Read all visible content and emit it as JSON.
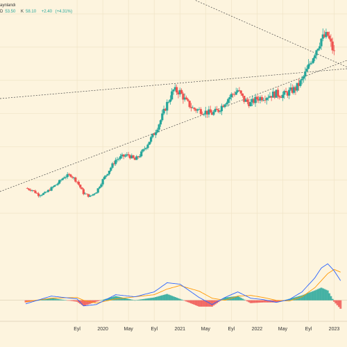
{
  "chart_data": [
    {
      "type": "candlestick",
      "title": "",
      "header": {
        "source_fragment": "aynlandı",
        "low_label": "D",
        "low_value": "53.50",
        "close_label": "K",
        "close_value": "58.10",
        "change": "+2.40",
        "change_pct": "(+4.31%)"
      },
      "x_tick_labels": [
        "Eyl",
        "2020",
        "May",
        "Eyl",
        "2021",
        "May",
        "Eyl",
        "2022",
        "May",
        "Eyl",
        "2023"
      ],
      "x_tick_months": [
        8,
        12,
        16,
        20,
        24,
        28,
        32,
        36,
        40,
        44,
        48
      ],
      "candles_approx_close": [
        [
          0,
          17.5
        ],
        [
          1,
          17.0
        ],
        [
          2,
          15.5
        ],
        [
          3,
          16.0
        ],
        [
          4,
          17.5
        ],
        [
          5,
          19.0
        ],
        [
          6,
          21.0
        ],
        [
          7,
          21.5
        ],
        [
          8,
          19.5
        ],
        [
          9,
          16.0
        ],
        [
          10,
          15.0
        ],
        [
          11,
          16.5
        ],
        [
          12,
          20.0
        ],
        [
          13,
          23.0
        ],
        [
          14,
          26.0
        ],
        [
          15,
          27.0
        ],
        [
          16,
          27.5
        ],
        [
          17,
          26.0
        ],
        [
          18,
          28.0
        ],
        [
          19,
          31.0
        ],
        [
          20,
          34.0
        ],
        [
          21,
          38.0
        ],
        [
          22,
          43.0
        ],
        [
          23,
          47.0
        ],
        [
          24,
          46.5
        ],
        [
          25,
          43.5
        ],
        [
          26,
          41.5
        ],
        [
          27,
          41.0
        ],
        [
          28,
          40.5
        ],
        [
          29,
          40.0
        ],
        [
          30,
          41.0
        ],
        [
          31,
          43.5
        ],
        [
          32,
          45.5
        ],
        [
          33,
          47.0
        ],
        [
          34,
          44.0
        ],
        [
          35,
          43.0
        ],
        [
          36,
          44.5
        ],
        [
          37,
          45.0
        ],
        [
          38,
          45.5
        ],
        [
          39,
          46.0
        ],
        [
          40,
          45.5
        ],
        [
          41,
          46.5
        ],
        [
          42,
          47.5
        ],
        [
          43,
          50.0
        ],
        [
          44,
          54.0
        ],
        [
          45,
          58.5
        ],
        [
          46,
          62.5
        ],
        [
          47,
          63.5
        ],
        [
          48,
          58.1
        ]
      ],
      "trendlines": [
        {
          "style": "dotted",
          "from": [
            -4,
            16.5
          ],
          "to": [
            50,
            56.0
          ]
        },
        {
          "style": "dotted",
          "from": [
            -4,
            44.5
          ],
          "to": [
            50,
            53.5
          ]
        },
        {
          "style": "dotted",
          "from": [
            -4,
            100.0
          ],
          "to": [
            50,
            54.0
          ]
        }
      ],
      "y_range": [
        0,
        70
      ],
      "x_range": [
        -4,
        50
      ],
      "grid": true,
      "colors": {
        "up": "#26a69a",
        "down": "#ef5350",
        "background": "#fdf4de",
        "grid": "#f0e4c6"
      }
    },
    {
      "type": "macd",
      "macd_line_color": "#2962ff",
      "signal_line_color": "#ff9800",
      "histogram_up_color": "#26a69a",
      "histogram_down_color": "#ef5350",
      "macd": [
        [
          0,
          -0.5
        ],
        [
          4,
          0.6
        ],
        [
          8,
          0.2
        ],
        [
          9,
          -0.8
        ],
        [
          11,
          -0.6
        ],
        [
          14,
          0.8
        ],
        [
          17,
          0.5
        ],
        [
          20,
          1.2
        ],
        [
          22,
          2.5
        ],
        [
          24,
          2.3
        ],
        [
          27,
          0.4
        ],
        [
          29,
          -0.6
        ],
        [
          31,
          0.4
        ],
        [
          33,
          1.2
        ],
        [
          35,
          0.3
        ],
        [
          37,
          0.1
        ],
        [
          39,
          -0.3
        ],
        [
          41,
          0.1
        ],
        [
          43,
          1.2
        ],
        [
          45,
          3.2
        ],
        [
          46,
          4.6
        ],
        [
          47,
          5.2
        ],
        [
          48,
          4.2
        ],
        [
          49,
          2.8
        ]
      ],
      "signal": [
        [
          0,
          -0.2
        ],
        [
          4,
          0.3
        ],
        [
          8,
          0.4
        ],
        [
          9,
          0.0
        ],
        [
          11,
          -0.4
        ],
        [
          14,
          0.2
        ],
        [
          17,
          0.5
        ],
        [
          20,
          0.8
        ],
        [
          22,
          1.6
        ],
        [
          24,
          2.1
        ],
        [
          27,
          1.3
        ],
        [
          29,
          0.3
        ],
        [
          31,
          0.0
        ],
        [
          33,
          0.6
        ],
        [
          35,
          0.7
        ],
        [
          37,
          0.4
        ],
        [
          39,
          0.0
        ],
        [
          41,
          -0.1
        ],
        [
          43,
          0.5
        ],
        [
          45,
          1.8
        ],
        [
          46,
          2.8
        ],
        [
          47,
          3.8
        ],
        [
          48,
          4.4
        ],
        [
          49,
          4.0
        ]
      ],
      "y_range": [
        -2.5,
        6
      ]
    }
  ]
}
